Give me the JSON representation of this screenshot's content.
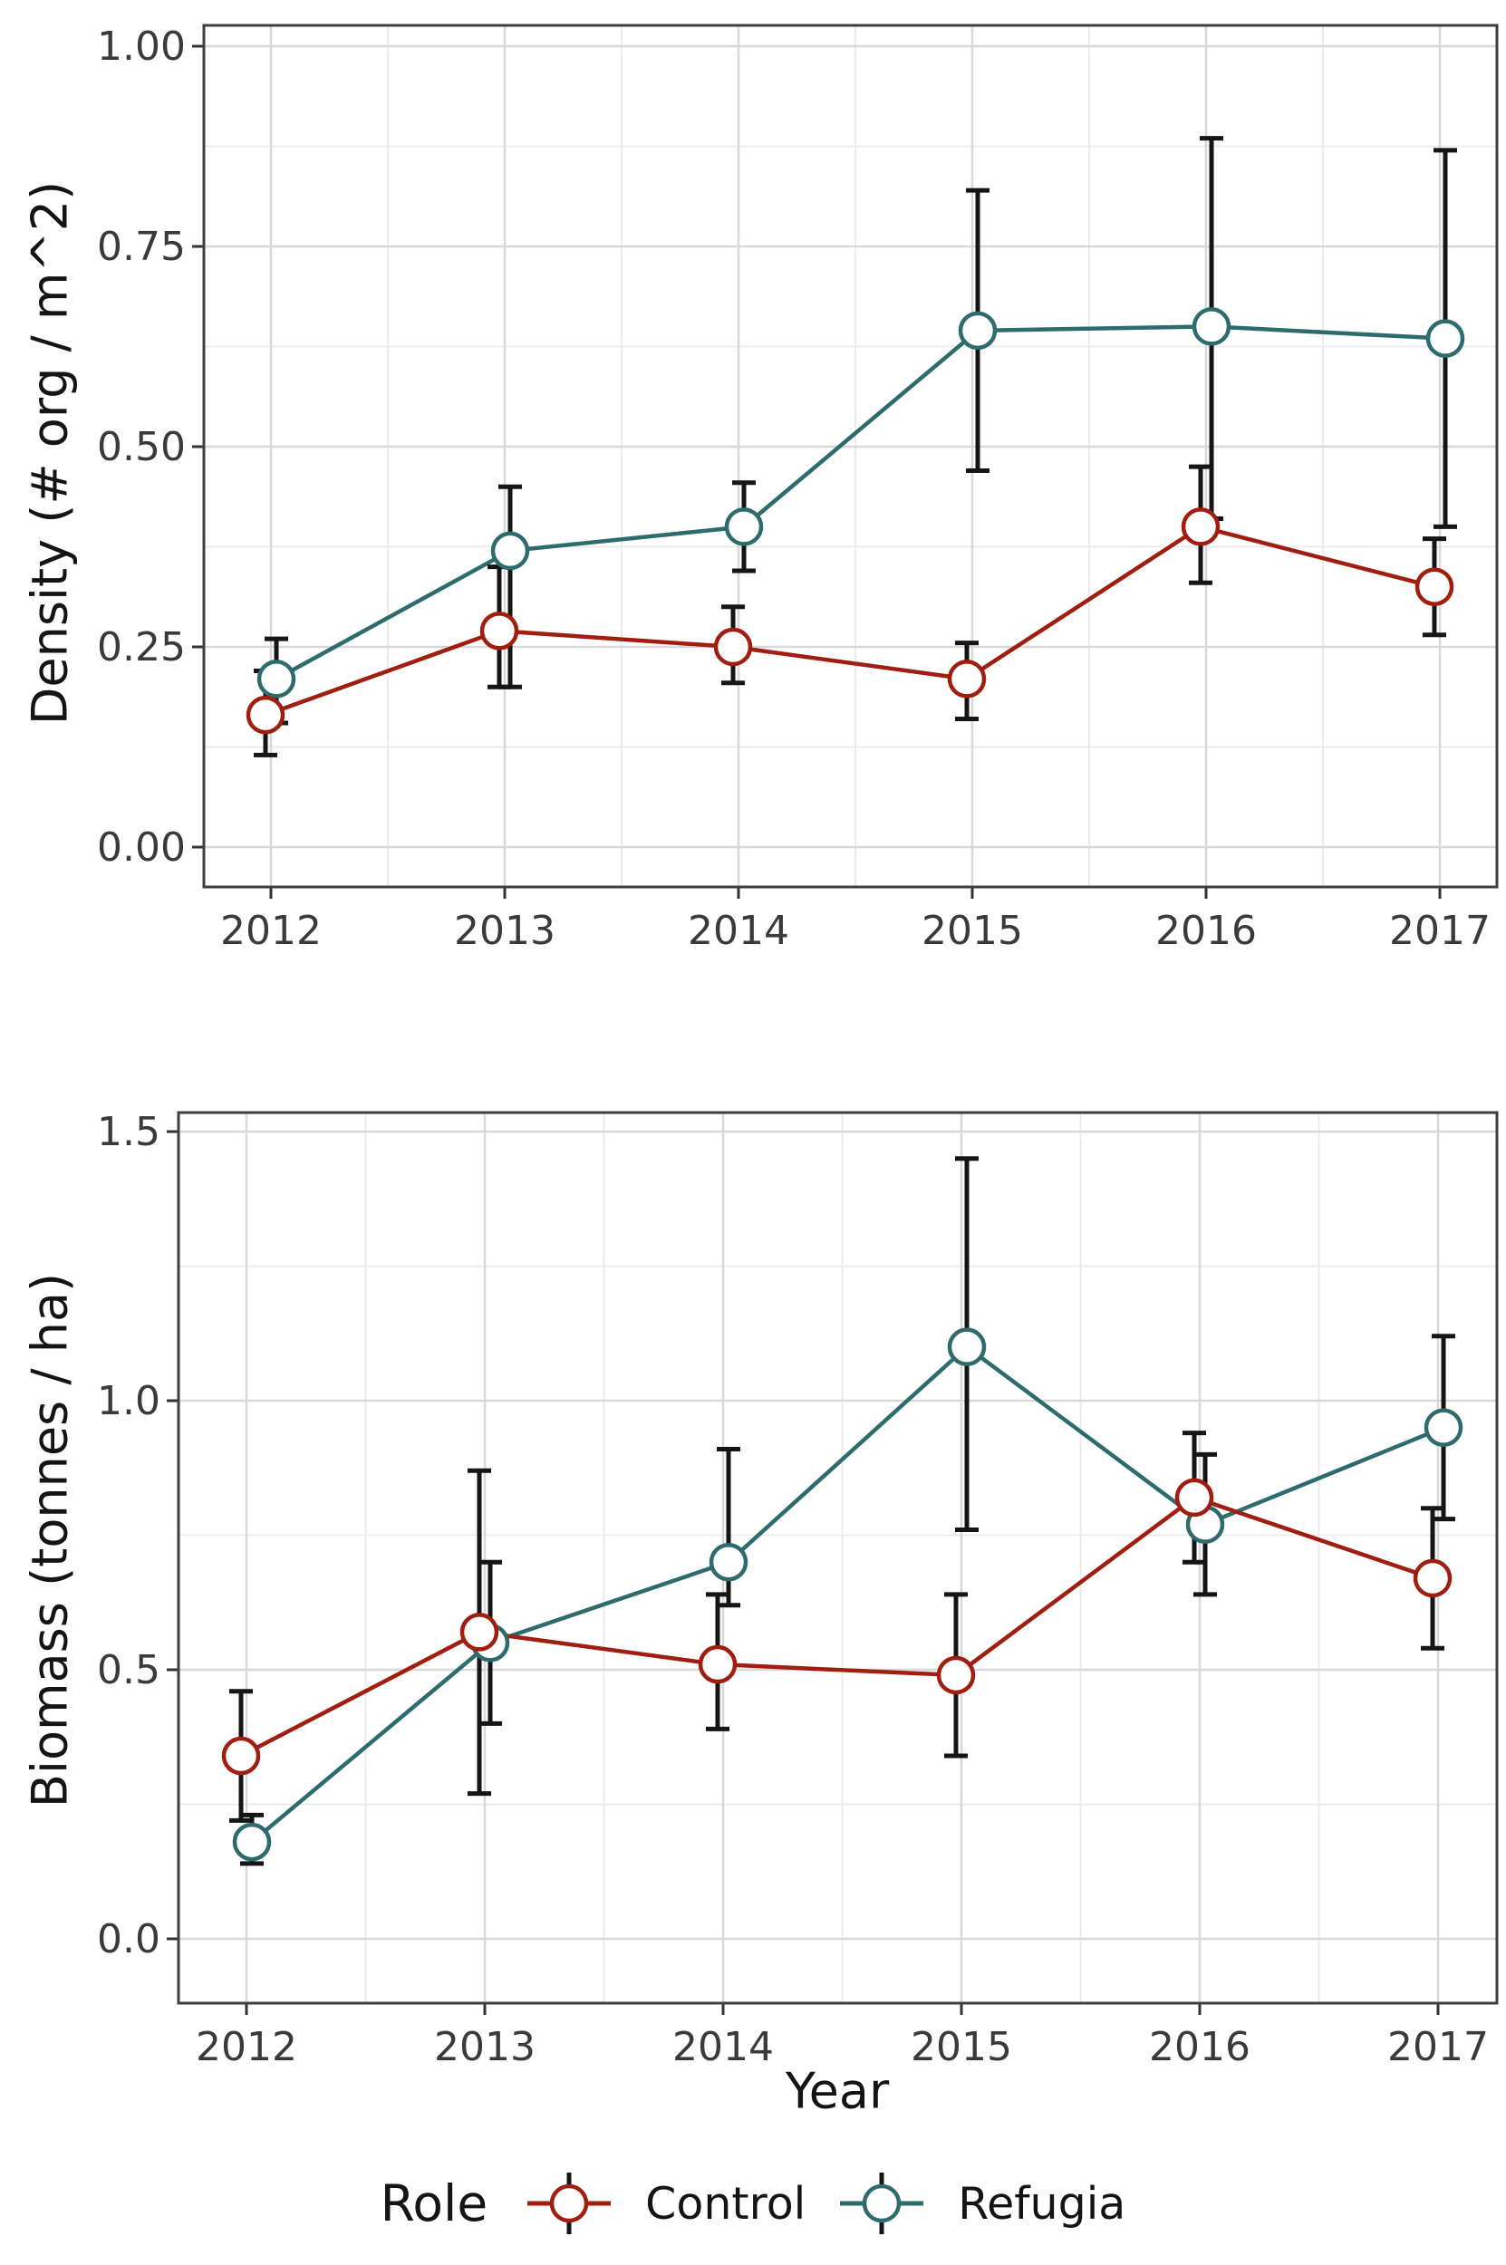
{
  "figure": {
    "background": "#ffffff"
  },
  "legend": {
    "title": "Role",
    "items": [
      {
        "label": "Control",
        "color": "#A01D10"
      },
      {
        "label": "Refugia",
        "color": "#2E6B6C"
      }
    ]
  },
  "chart_data": [
    {
      "type": "line",
      "panel": "top",
      "title": "",
      "xlabel": "",
      "ylabel": "Density (# org / m^2)",
      "categories": [
        "2012",
        "2013",
        "2014",
        "2015",
        "2016",
        "2017"
      ],
      "ylim": [
        -0.05,
        1.02
      ],
      "grid": true,
      "legend_position": "bottom",
      "yticks": {
        "values": [
          0,
          0.25,
          0.5,
          0.75,
          1.0
        ],
        "labels": [
          "0.00",
          "0.25",
          "0.50",
          "0.75",
          "1.00"
        ]
      },
      "yminor": [
        0.125,
        0.375,
        0.625,
        0.875
      ],
      "series": [
        {
          "name": "Refugia",
          "color": "#2E6B6C",
          "values": [
            0.21,
            0.37,
            0.4,
            0.645,
            0.65,
            0.635
          ],
          "err_low": [
            0.155,
            0.2,
            0.345,
            0.47,
            0.41,
            0.4
          ],
          "err_high": [
            0.26,
            0.45,
            0.455,
            0.82,
            0.885,
            0.87
          ]
        },
        {
          "name": "Control",
          "color": "#A01D10",
          "values": [
            0.165,
            0.27,
            0.25,
            0.21,
            0.4,
            0.325
          ],
          "err_low": [
            0.115,
            0.2,
            0.205,
            0.16,
            0.33,
            0.265
          ],
          "err_high": [
            0.22,
            0.35,
            0.3,
            0.255,
            0.475,
            0.385
          ]
        }
      ]
    },
    {
      "type": "line",
      "panel": "bottom",
      "title": "",
      "xlabel": "Year",
      "ylabel": "Biomass (tonnes / ha)",
      "categories": [
        "2012",
        "2013",
        "2014",
        "2015",
        "2016",
        "2017"
      ],
      "ylim": [
        -0.12,
        1.55
      ],
      "grid": true,
      "legend_position": "bottom",
      "yticks": {
        "values": [
          0,
          0.5,
          1.0,
          1.5
        ],
        "labels": [
          "0.0",
          "0.5",
          "1.0",
          "1.5"
        ]
      },
      "yminor": [
        0.25,
        0.75,
        1.25
      ],
      "series": [
        {
          "name": "Refugia",
          "color": "#2E6B6C",
          "values": [
            0.18,
            0.55,
            0.7,
            1.1,
            0.77,
            0.95
          ],
          "err_low": [
            0.14,
            0.4,
            0.62,
            0.76,
            0.64,
            0.78
          ],
          "err_high": [
            0.23,
            0.7,
            0.91,
            1.45,
            0.9,
            1.12
          ]
        },
        {
          "name": "Control",
          "color": "#A01D10",
          "values": [
            0.34,
            0.57,
            0.51,
            0.49,
            0.82,
            0.67
          ],
          "err_low": [
            0.22,
            0.27,
            0.39,
            0.34,
            0.7,
            0.54
          ],
          "err_high": [
            0.46,
            0.87,
            0.64,
            0.64,
            0.94,
            0.8
          ]
        }
      ]
    }
  ]
}
